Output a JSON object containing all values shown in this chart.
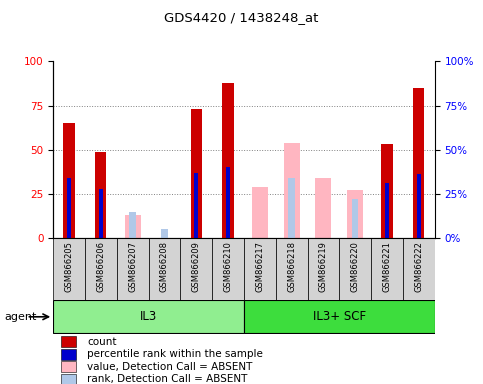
{
  "title": "GDS4420 / 1438248_at",
  "samples": [
    "GSM866205",
    "GSM866206",
    "GSM866207",
    "GSM866208",
    "GSM866209",
    "GSM866210",
    "GSM866217",
    "GSM866218",
    "GSM866219",
    "GSM866220",
    "GSM866221",
    "GSM866222"
  ],
  "groups": [
    {
      "label": "IL3",
      "indices": [
        0,
        1,
        2,
        3,
        4,
        5
      ],
      "color": "#90ee90"
    },
    {
      "label": "IL3+ SCF",
      "indices": [
        6,
        7,
        8,
        9,
        10,
        11
      ],
      "color": "#3ddd3d"
    }
  ],
  "count": [
    65,
    49,
    null,
    null,
    73,
    88,
    null,
    null,
    null,
    null,
    53,
    85
  ],
  "percentile_rank": [
    34,
    28,
    null,
    null,
    37,
    40,
    null,
    null,
    null,
    null,
    31,
    36
  ],
  "value_absent": [
    null,
    null,
    13,
    null,
    null,
    null,
    29,
    54,
    34,
    27,
    null,
    null
  ],
  "rank_absent": [
    null,
    null,
    15,
    5,
    null,
    null,
    null,
    34,
    null,
    22,
    null,
    null
  ],
  "ylim": [
    0,
    100
  ],
  "yticks": [
    0,
    25,
    50,
    75,
    100
  ],
  "count_color": "#cc0000",
  "rank_color": "#0000cc",
  "value_absent_color": "#ffb6c1",
  "rank_absent_color": "#b0c8e8",
  "agent_label": "agent",
  "legend_items": [
    {
      "color": "#cc0000",
      "label": "count"
    },
    {
      "color": "#0000cc",
      "label": "percentile rank within the sample"
    },
    {
      "color": "#ffb6c1",
      "label": "value, Detection Call = ABSENT"
    },
    {
      "color": "#b0c8e8",
      "label": "rank, Detection Call = ABSENT"
    }
  ]
}
